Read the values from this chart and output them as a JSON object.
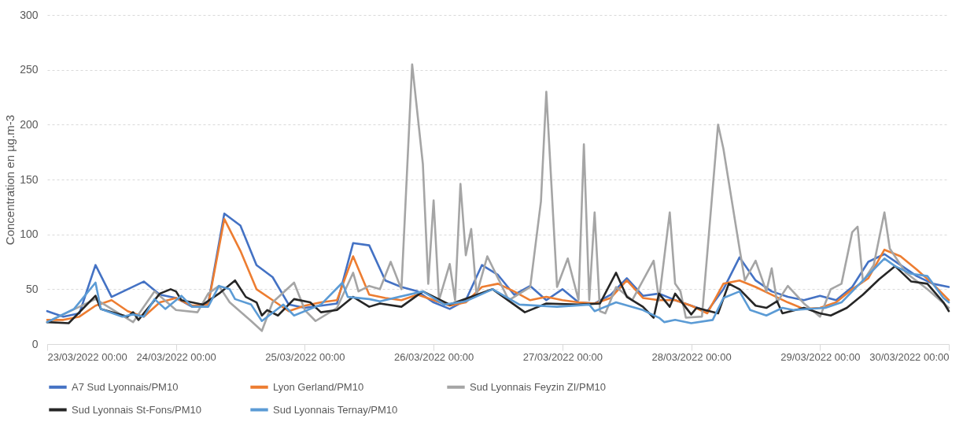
{
  "chart_data": {
    "type": "line",
    "ylabel": "Concentration en µg.m-3",
    "xlim": [
      "2022-03-23T00:00",
      "2022-03-30T00:00"
    ],
    "xticks": [
      {
        "value": "2022-03-23T00:00",
        "label": "23/03/2022 00:00"
      },
      {
        "value": "2022-03-24T00:00",
        "label": "24/03/2022 00:00"
      },
      {
        "value": "2022-03-25T00:00",
        "label": "25/03/2022 00:00"
      },
      {
        "value": "2022-03-26T00:00",
        "label": "26/03/2022 00:00"
      },
      {
        "value": "2022-03-27T00:00",
        "label": "27/03/2022 00:00"
      },
      {
        "value": "2022-03-28T00:00",
        "label": "28/03/2022 00:00"
      },
      {
        "value": "2022-03-29T00:00",
        "label": "29/03/2022 00:00"
      },
      {
        "value": "2022-03-30T00:00",
        "label": "30/03/2022 00:00"
      }
    ],
    "ylim": [
      0,
      300
    ],
    "yticks": [
      0,
      50,
      100,
      150,
      200,
      250,
      300
    ],
    "grid": "y",
    "legend": "bottom",
    "x": [
      "2022-03-23T00:00",
      "2022-03-23T03:00",
      "2022-03-23T06:00",
      "2022-03-23T09:00",
      "2022-03-23T12:00",
      "2022-03-23T15:00",
      "2022-03-23T18:00",
      "2022-03-23T21:00",
      "2022-03-24T00:00",
      "2022-03-24T03:00",
      "2022-03-24T06:00",
      "2022-03-24T09:00",
      "2022-03-24T12:00",
      "2022-03-24T15:00",
      "2022-03-24T18:00",
      "2022-03-24T21:00",
      "2022-03-25T00:00",
      "2022-03-25T03:00",
      "2022-03-25T06:00",
      "2022-03-25T09:00",
      "2022-03-25T12:00",
      "2022-03-25T15:00",
      "2022-03-25T18:00",
      "2022-03-25T21:00",
      "2022-03-26T00:00",
      "2022-03-26T03:00",
      "2022-03-26T06:00",
      "2022-03-26T09:00",
      "2022-03-26T12:00",
      "2022-03-26T15:00",
      "2022-03-26T18:00",
      "2022-03-26T21:00",
      "2022-03-27T00:00",
      "2022-03-27T03:00",
      "2022-03-27T06:00",
      "2022-03-27T09:00",
      "2022-03-27T12:00",
      "2022-03-27T15:00",
      "2022-03-27T18:00",
      "2022-03-27T21:00",
      "2022-03-28T00:00",
      "2022-03-28T03:00",
      "2022-03-28T06:00",
      "2022-03-28T09:00",
      "2022-03-28T12:00",
      "2022-03-28T15:00",
      "2022-03-28T18:00",
      "2022-03-28T21:00",
      "2022-03-29T00:00",
      "2022-03-29T03:00",
      "2022-03-29T06:00",
      "2022-03-29T09:00",
      "2022-03-29T12:00",
      "2022-03-29T15:00",
      "2022-03-29T18:00",
      "2022-03-29T21:00",
      "2022-03-30T00:00"
    ],
    "series": [
      {
        "name": "A7 Sud Lyonnais/PM10",
        "color": "#4472c4",
        "values": [
          30,
          25,
          28,
          72,
          43,
          50,
          57,
          45,
          42,
          34,
          37,
          119,
          108,
          72,
          61,
          36,
          33,
          35,
          37,
          92,
          90,
          58,
          52,
          48,
          38,
          32,
          40,
          72,
          63,
          45,
          53,
          40,
          50,
          38,
          37,
          45,
          60,
          44,
          46,
          40,
          35,
          30,
          50,
          79,
          58,
          48,
          43,
          40,
          44,
          40,
          52,
          75,
          82,
          72,
          62,
          55,
          52
        ]
      },
      {
        "name": "Lyon Gerland/PM10",
        "color": "#ed7d31",
        "values": [
          22,
          22,
          25,
          35,
          40,
          30,
          25,
          38,
          42,
          35,
          36,
          114,
          85,
          50,
          40,
          30,
          35,
          38,
          40,
          80,
          45,
          42,
          40,
          45,
          40,
          35,
          38,
          52,
          55,
          48,
          40,
          43,
          40,
          38,
          37,
          42,
          58,
          42,
          40,
          40,
          35,
          28,
          55,
          58,
          52,
          45,
          38,
          32,
          33,
          38,
          50,
          60,
          86,
          80,
          68,
          55,
          40
        ]
      },
      {
        "name": "Sud Lyonnais Feyzin ZI/PM10",
        "color": "#a5a5a5",
        "x": [
          "2022-03-23T00:00",
          "2022-03-23T09:00",
          "2022-03-23T16:00",
          "2022-03-23T20:00",
          "2022-03-24T00:00",
          "2022-03-24T04:00",
          "2022-03-24T06:00",
          "2022-03-24T08:00",
          "2022-03-24T10:00",
          "2022-03-24T14:00",
          "2022-03-24T16:00",
          "2022-03-24T18:00",
          "2022-03-24T22:00",
          "2022-03-25T00:00",
          "2022-03-25T02:00",
          "2022-03-25T06:00",
          "2022-03-25T09:00",
          "2022-03-25T10:00",
          "2022-03-25T12:00",
          "2022-03-25T14:00",
          "2022-03-25T16:00",
          "2022-03-25T18:00",
          "2022-03-25T20:00",
          "2022-03-25T22:00",
          "2022-03-25T23:00",
          "2022-03-26T00:00",
          "2022-03-26T01:00",
          "2022-03-26T03:00",
          "2022-03-26T04:00",
          "2022-03-26T05:00",
          "2022-03-26T06:00",
          "2022-03-26T07:00",
          "2022-03-26T08:00",
          "2022-03-26T10:00",
          "2022-03-26T12:00",
          "2022-03-26T14:00",
          "2022-03-26T18:00",
          "2022-03-26T20:00",
          "2022-03-26T21:00",
          "2022-03-26T23:00",
          "2022-03-27T01:00",
          "2022-03-27T03:00",
          "2022-03-27T04:00",
          "2022-03-27T05:00",
          "2022-03-27T06:00",
          "2022-03-27T07:00",
          "2022-03-27T08:00",
          "2022-03-27T10:00",
          "2022-03-27T13:00",
          "2022-03-27T17:00",
          "2022-03-27T18:00",
          "2022-03-27T20:00",
          "2022-03-27T21:00",
          "2022-03-27T22:00",
          "2022-03-27T23:00",
          "2022-03-28T02:00",
          "2022-03-28T03:00",
          "2022-03-28T05:00",
          "2022-03-28T06:00",
          "2022-03-28T09:00",
          "2022-03-28T10:00",
          "2022-03-28T12:00",
          "2022-03-28T14:00",
          "2022-03-28T15:00",
          "2022-03-28T16:00",
          "2022-03-28T18:00",
          "2022-03-28T21:00",
          "2022-03-29T00:00",
          "2022-03-29T02:00",
          "2022-03-29T04:00",
          "2022-03-29T06:00",
          "2022-03-29T07:00",
          "2022-03-29T08:00",
          "2022-03-29T10:00",
          "2022-03-29T12:00",
          "2022-03-29T13:00",
          "2022-03-29T16:00",
          "2022-03-29T20:00",
          "2022-03-30T00:00"
        ],
        "values": [
          20,
          41,
          20,
          48,
          31,
          29,
          46,
          53,
          38,
          21,
          12,
          38,
          56,
          31,
          21,
          33,
          65,
          48,
          53,
          50,
          75,
          50,
          255,
          164,
          55,
          131,
          40,
          73,
          40,
          146,
          81,
          105,
          45,
          80,
          60,
          40,
          52,
          130,
          230,
          52,
          78,
          40,
          182,
          40,
          120,
          30,
          28,
          52,
          40,
          76,
          40,
          120,
          55,
          48,
          24,
          25,
          83,
          200,
          178,
          87,
          58,
          76,
          48,
          69,
          38,
          53,
          37,
          25,
          50,
          55,
          102,
          107,
          57,
          72,
          120,
          87,
          65,
          50,
          33
        ]
      },
      {
        "name": "Sud Lyonnais St-Fons/PM10",
        "color": "#262626",
        "x": [
          "2022-03-23T00:00",
          "2022-03-23T04:00",
          "2022-03-23T09:00",
          "2022-03-23T10:00",
          "2022-03-23T15:00",
          "2022-03-23T16:00",
          "2022-03-23T17:00",
          "2022-03-23T21:00",
          "2022-03-23T23:00",
          "2022-03-24T00:00",
          "2022-03-24T01:00",
          "2022-03-24T05:00",
          "2022-03-24T08:00",
          "2022-03-24T11:00",
          "2022-03-24T13:00",
          "2022-03-24T15:00",
          "2022-03-24T16:00",
          "2022-03-24T17:00",
          "2022-03-24T19:00",
          "2022-03-24T22:00",
          "2022-03-25T01:00",
          "2022-03-25T03:00",
          "2022-03-25T06:00",
          "2022-03-25T09:00",
          "2022-03-25T12:00",
          "2022-03-25T14:00",
          "2022-03-25T18:00",
          "2022-03-25T22:00",
          "2022-03-26T03:00",
          "2022-03-26T07:00",
          "2022-03-26T11:00",
          "2022-03-26T17:00",
          "2022-03-26T21:00",
          "2022-03-27T03:00",
          "2022-03-27T07:00",
          "2022-03-27T10:00",
          "2022-03-27T12:00",
          "2022-03-27T15:00",
          "2022-03-27T17:00",
          "2022-03-27T18:00",
          "2022-03-27T20:00",
          "2022-03-27T21:00",
          "2022-03-28T00:00",
          "2022-03-28T01:00",
          "2022-03-28T05:00",
          "2022-03-28T07:00",
          "2022-03-28T09:00",
          "2022-03-28T12:00",
          "2022-03-28T14:00",
          "2022-03-28T16:00",
          "2022-03-28T17:00",
          "2022-03-28T21:00",
          "2022-03-29T00:00",
          "2022-03-29T02:00",
          "2022-03-29T05:00",
          "2022-03-29T08:00",
          "2022-03-29T11:00",
          "2022-03-29T14:00",
          "2022-03-29T17:00",
          "2022-03-29T20:00",
          "2022-03-29T23:00",
          "2022-03-30T00:00"
        ],
        "values": [
          20,
          19,
          44,
          32,
          25,
          29,
          22,
          46,
          50,
          48,
          40,
          36,
          46,
          58,
          43,
          38,
          26,
          31,
          26,
          41,
          38,
          29,
          31,
          43,
          34,
          37,
          34,
          48,
          36,
          43,
          50,
          29,
          37,
          36,
          37,
          65,
          43,
          34,
          24,
          46,
          34,
          46,
          27,
          33,
          28,
          55,
          50,
          35,
          33,
          39,
          28,
          33,
          28,
          26,
          33,
          45,
          59,
          71,
          57,
          55,
          38,
          30
        ]
      },
      {
        "name": "Sud Lyonnais Ternay/PM10",
        "color": "#5b9bd5",
        "x": [
          "2022-03-23T00:00",
          "2022-03-23T05:00",
          "2022-03-23T09:00",
          "2022-03-23T10:00",
          "2022-03-23T14:00",
          "2022-03-23T16:00",
          "2022-03-23T18:00",
          "2022-03-23T20:00",
          "2022-03-23T22:00",
          "2022-03-24T01:00",
          "2022-03-24T03:00",
          "2022-03-24T06:00",
          "2022-03-24T08:00",
          "2022-03-24T10:00",
          "2022-03-24T11:00",
          "2022-03-24T14:00",
          "2022-03-24T16:00",
          "2022-03-24T20:00",
          "2022-03-24T22:00",
          "2022-03-25T03:00",
          "2022-03-25T07:00",
          "2022-03-25T08:00",
          "2022-03-25T12:00",
          "2022-03-25T14:00",
          "2022-03-25T22:00",
          "2022-03-26T02:00",
          "2022-03-26T06:00",
          "2022-03-26T11:00",
          "2022-03-26T16:00",
          "2022-03-26T23:00",
          "2022-03-27T05:00",
          "2022-03-27T06:00",
          "2022-03-27T10:00",
          "2022-03-27T15:00",
          "2022-03-27T18:00",
          "2022-03-27T19:00",
          "2022-03-27T21:00",
          "2022-03-28T00:00",
          "2022-03-28T04:00",
          "2022-03-28T06:00",
          "2022-03-28T09:00",
          "2022-03-28T11:00",
          "2022-03-28T14:00",
          "2022-03-28T17:00",
          "2022-03-28T19:00",
          "2022-03-29T01:00",
          "2022-03-29T04:00",
          "2022-03-29T07:00",
          "2022-03-29T10:00",
          "2022-03-29T12:00",
          "2022-03-29T14:00",
          "2022-03-29T17:00",
          "2022-03-29T20:00",
          "2022-03-29T23:00",
          "2022-03-30T00:00"
        ],
        "values": [
          20,
          32,
          56,
          32,
          25,
          27,
          25,
          41,
          32,
          44,
          34,
          34,
          53,
          50,
          41,
          36,
          21,
          36,
          26,
          36,
          56,
          43,
          41,
          39,
          48,
          36,
          39,
          50,
          36,
          34,
          36,
          30,
          38,
          31,
          24,
          20,
          22,
          19,
          22,
          42,
          48,
          31,
          26,
          33,
          31,
          33,
          38,
          53,
          68,
          78,
          71,
          64,
          62,
          42,
          38
        ]
      }
    ]
  }
}
